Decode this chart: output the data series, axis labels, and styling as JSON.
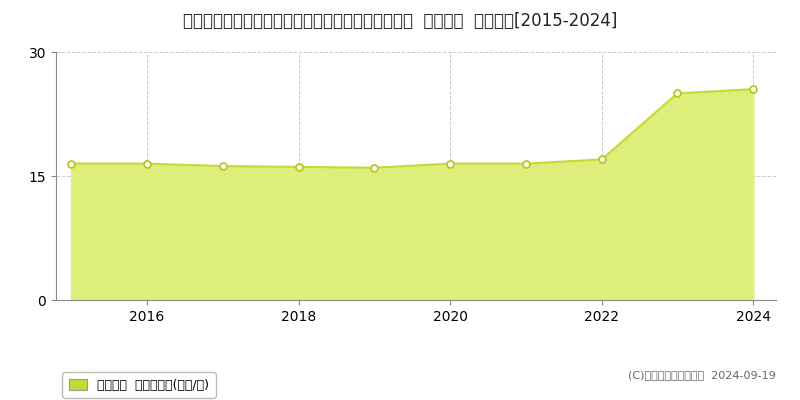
{
  "title": "北海道札幌市西区宮の沢３条５丁目４８７番１４６  公示地価  地価推移[2015-2024]",
  "x_data": [
    2015,
    2016,
    2017,
    2018,
    2019,
    2020,
    2021,
    2022,
    2023,
    2024
  ],
  "y_data": [
    16.5,
    16.5,
    16.2,
    16.1,
    16.0,
    16.5,
    16.5,
    17.0,
    25.0,
    25.5
  ],
  "ylim": [
    0,
    30
  ],
  "yticks": [
    0,
    15,
    30
  ],
  "xticks": [
    2016,
    2018,
    2020,
    2022,
    2024
  ],
  "line_color": "#c8d832",
  "fill_color": "#ddef7a",
  "fill_alpha": 1.0,
  "marker_facecolor": "white",
  "marker_edgecolor": "#b8c820",
  "bg_color": "#ffffff",
  "grid_color": "#cccccc",
  "legend_label": "公示地価  平均坪単価(万円/坪)",
  "legend_color": "#c8d832",
  "copyright_text": "(C)土地価格ドットコム  2024-09-19",
  "title_fontsize": 12,
  "axis_fontsize": 10,
  "legend_fontsize": 9,
  "copyright_fontsize": 8
}
